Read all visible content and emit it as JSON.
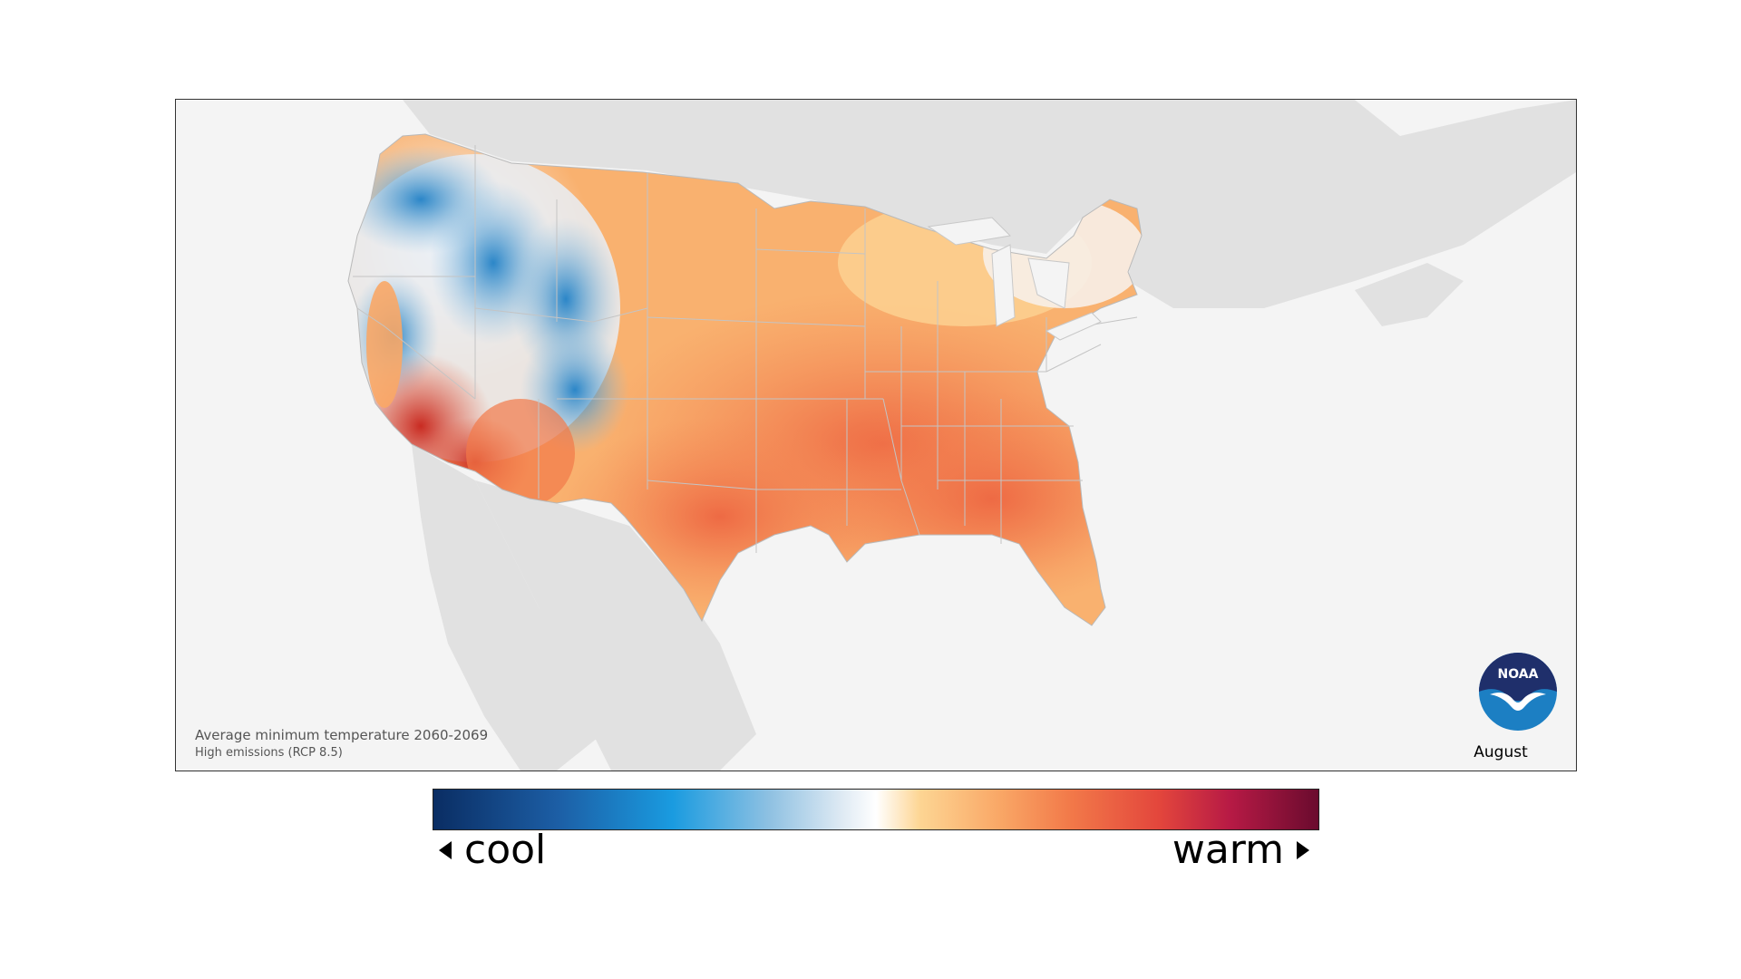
{
  "map": {
    "caption_line1": "Average minimum temperature 2060-2069",
    "caption_line2": "High emissions (RCP 8.5)",
    "month": "August",
    "logo_text": "NOAA",
    "colors": {
      "ocean": "#f4f4f4",
      "land_outside": "#e1e1e1",
      "state_border": "#b9b9b9",
      "cool": "#2b86c8",
      "warm": "#f27949"
    }
  },
  "legend": {
    "cool_label": "cool",
    "warm_label": "warm",
    "left_arrow_icon": "triangle-left-icon",
    "right_arrow_icon": "triangle-right-icon",
    "scale_colors": [
      "#0a2d63",
      "#1c5ea5",
      "#1a9be0",
      "#8fc1e2",
      "#ffffff",
      "#fdd593",
      "#f9a766",
      "#f27949",
      "#e3463c",
      "#b71a45",
      "#6a0b2e"
    ]
  }
}
